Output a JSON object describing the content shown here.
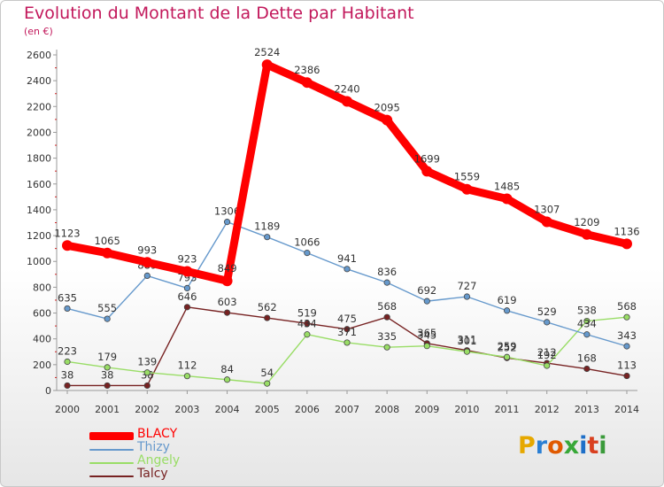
{
  "title": "Evolution du Montant de la Dette par Habitant",
  "subtitle": "(en €)",
  "logo": "Proxiti",
  "legend": [
    {
      "name": "BLACY",
      "color": "#ff0000"
    },
    {
      "name": "Thizy",
      "color": "#6699cc"
    },
    {
      "name": "Angely",
      "color": "#99dd66"
    },
    {
      "name": "Talcy",
      "color": "#772222"
    }
  ],
  "chart_data": {
    "type": "line",
    "x": [
      "2000",
      "2001",
      "2002",
      "2003",
      "2004",
      "2005",
      "2006",
      "2007",
      "2008",
      "2009",
      "2010",
      "2011",
      "2012",
      "2013",
      "2014"
    ],
    "ylim": [
      0,
      2600
    ],
    "yticks": [
      0,
      200,
      400,
      600,
      800,
      1000,
      1200,
      1400,
      1600,
      1800,
      2000,
      2200,
      2400,
      2600
    ],
    "grid": false,
    "series": [
      {
        "name": "BLACY",
        "color": "#ff0000",
        "values": [
          1123,
          1065,
          993,
          923,
          849,
          2524,
          2386,
          2240,
          2095,
          1699,
          1559,
          1485,
          1307,
          1209,
          1136
        ]
      },
      {
        "name": "Thizy",
        "color": "#6699cc",
        "values": [
          635,
          555,
          889,
          793,
          1306,
          1189,
          1066,
          941,
          836,
          692,
          727,
          619,
          529,
          434,
          343
        ]
      },
      {
        "name": "Angely",
        "color": "#99dd66",
        "values": [
          223,
          179,
          139,
          112,
          84,
          54,
          434,
          371,
          335,
          345,
          301,
          259,
          192,
          538,
          568
        ]
      },
      {
        "name": "Talcy",
        "color": "#772222",
        "values": [
          38,
          38,
          38,
          646,
          603,
          562,
          519,
          475,
          568,
          365,
          311,
          252,
          212,
          168,
          113
        ]
      }
    ]
  }
}
